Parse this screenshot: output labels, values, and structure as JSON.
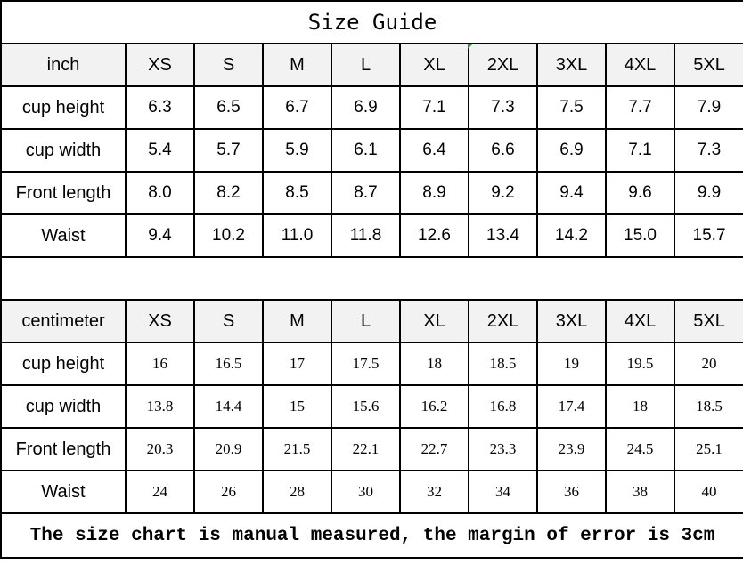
{
  "title": "Size Guide",
  "sizes": [
    "XS",
    "S",
    "M",
    "L",
    "XL",
    "2XL",
    "3XL",
    "4XL",
    "5XL"
  ],
  "inch": {
    "unit": "inch",
    "rows": [
      {
        "label": "cup height",
        "values": [
          "6.3",
          "6.5",
          "6.7",
          "6.9",
          "7.1",
          "7.3",
          "7.5",
          "7.7",
          "7.9"
        ]
      },
      {
        "label": "cup width",
        "values": [
          "5.4",
          "5.7",
          "5.9",
          "6.1",
          "6.4",
          "6.6",
          "6.9",
          "7.1",
          "7.3"
        ]
      },
      {
        "label": "Front length",
        "values": [
          "8.0",
          "8.2",
          "8.5",
          "8.7",
          "8.9",
          "9.2",
          "9.4",
          "9.6",
          "9.9"
        ]
      },
      {
        "label": "Waist",
        "values": [
          "9.4",
          "10.2",
          "11.0",
          "11.8",
          "12.6",
          "13.4",
          "14.2",
          "15.0",
          "15.7"
        ]
      }
    ]
  },
  "centimeter": {
    "unit": "centimeter",
    "rows": [
      {
        "label": "cup height",
        "values": [
          "16",
          "16.5",
          "17",
          "17.5",
          "18",
          "18.5",
          "19",
          "19.5",
          "20"
        ]
      },
      {
        "label": "cup width",
        "values": [
          "13.8",
          "14.4",
          "15",
          "15.6",
          "16.2",
          "16.8",
          "17.4",
          "18",
          "18.5"
        ]
      },
      {
        "label": "Front length",
        "values": [
          "20.3",
          "20.9",
          "21.5",
          "22.1",
          "22.7",
          "23.3",
          "23.9",
          "24.5",
          "25.1"
        ]
      },
      {
        "label": "Waist",
        "values": [
          "24",
          "26",
          "28",
          "30",
          "32",
          "34",
          "36",
          "38",
          "40"
        ]
      }
    ]
  },
  "note": "The size chart is manual measured, the margin of error is 3cm",
  "colors": {
    "header_bg": "#f2f2f2",
    "border": "#000000"
  }
}
